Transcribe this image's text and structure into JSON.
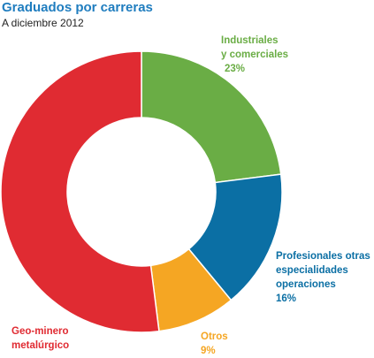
{
  "title": "Graduados por carreras",
  "subtitle": "A diciembre 2012",
  "chart_data": {
    "type": "pie",
    "donut": true,
    "slices": [
      {
        "label_lines": [
          "Industriales",
          "y comerciales"
        ],
        "value": 23,
        "value_text": "23%",
        "color": "#6aad45",
        "label_color": "#6aad45"
      },
      {
        "label_lines": [
          "Profesionales otras",
          "especialidades",
          "operaciones"
        ],
        "value": 16,
        "value_text": "16%",
        "color": "#0b6fa4",
        "label_color": "#0b6fa4"
      },
      {
        "label_lines": [
          "Otros"
        ],
        "value": 9,
        "value_text": "9%",
        "color": "#f5a623",
        "label_color": "#f5a623"
      },
      {
        "label_lines": [
          "Geo-minero",
          "metalúrgico"
        ],
        "value": 52,
        "value_text": "",
        "color": "#e02b32",
        "label_color": "#e02b32"
      }
    ]
  }
}
